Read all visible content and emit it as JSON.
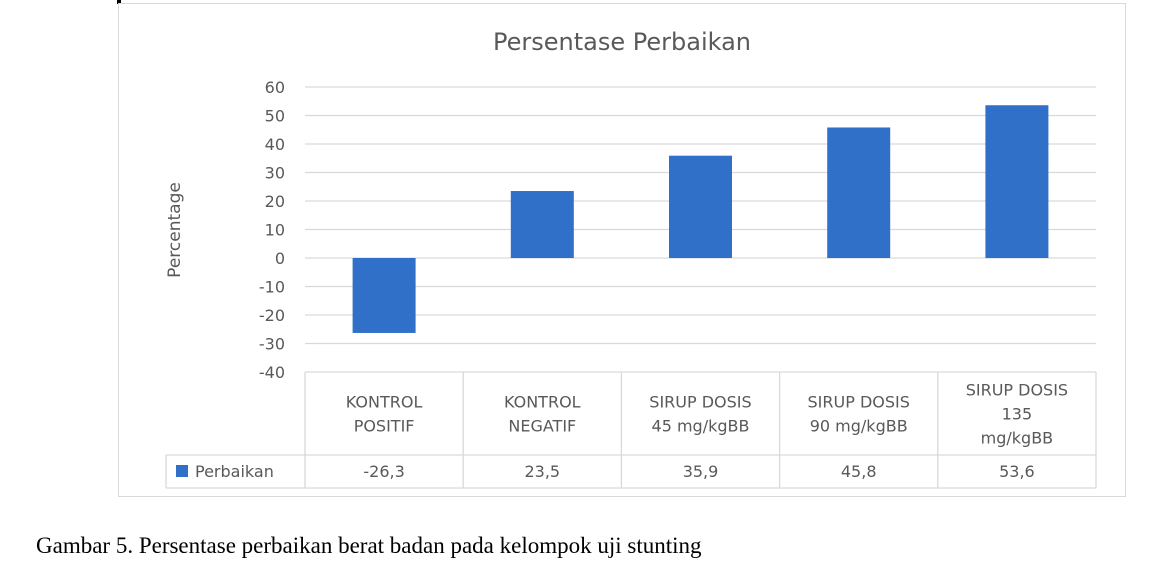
{
  "chart_data": {
    "type": "bar",
    "title": "Persentase Perbaikan",
    "ylabel": "Percentage",
    "xlabel": "",
    "categories": [
      [
        "KONTROL",
        "POSITIF"
      ],
      [
        "KONTROL",
        "NEGATIF"
      ],
      [
        "SIRUP DOSIS",
        "45 mg/kgBB"
      ],
      [
        "SIRUP DOSIS",
        "90 mg/kgBB"
      ],
      [
        "SIRUP DOSIS",
        "135",
        "mg/kgBB"
      ]
    ],
    "series": [
      {
        "name": "Perbaikan",
        "values": [
          -26.3,
          23.5,
          35.9,
          45.8,
          53.6
        ],
        "labels": [
          "-26,3",
          "23,5",
          "35,9",
          "45,8",
          "53,6"
        ],
        "color": "#3170c8"
      }
    ],
    "ylim": [
      -40,
      60
    ],
    "yticks": [
      60,
      50,
      40,
      30,
      20,
      10,
      0,
      -10,
      -20,
      -30,
      -40
    ],
    "grid": true,
    "legend": "data-table",
    "colors": {
      "grid": "#d9d9d9",
      "text": "#595959",
      "title": "#595959"
    }
  },
  "caption": "Gambar 5. Persentase perbaikan berat badan pada kelompok uji stunting"
}
